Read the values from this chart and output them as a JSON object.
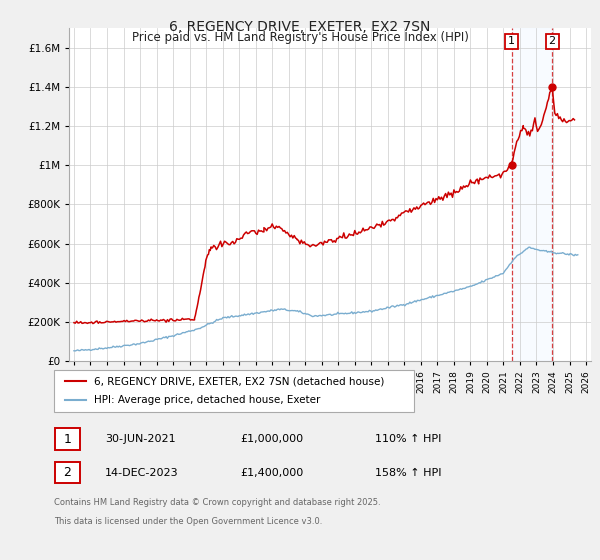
{
  "title": "6, REGENCY DRIVE, EXETER, EX2 7SN",
  "subtitle": "Price paid vs. HM Land Registry's House Price Index (HPI)",
  "legend_line1": "6, REGENCY DRIVE, EXETER, EX2 7SN (detached house)",
  "legend_line2": "HPI: Average price, detached house, Exeter",
  "annotation1_date": "30-JUN-2021",
  "annotation1_price": "£1,000,000",
  "annotation1_hpi": "110% ↑ HPI",
  "annotation2_date": "14-DEC-2023",
  "annotation2_price": "£1,400,000",
  "annotation2_hpi": "158% ↑ HPI",
  "footnote_line1": "Contains HM Land Registry data © Crown copyright and database right 2025.",
  "footnote_line2": "This data is licensed under the Open Government Licence v3.0.",
  "red_color": "#cc0000",
  "blue_color": "#7aadcf",
  "vline_color": "#cc000088",
  "span_color": "#ddeeff",
  "ylim": [
    0,
    1700000
  ],
  "yticks": [
    0,
    200000,
    400000,
    600000,
    800000,
    1000000,
    1200000,
    1400000,
    1600000
  ],
  "xlim_start": 1994.7,
  "xlim_end": 2026.3,
  "vline1_x": 2021.49,
  "vline2_x": 2023.95,
  "background_color": "#f0f0f0",
  "plot_bg_color": "#ffffff"
}
